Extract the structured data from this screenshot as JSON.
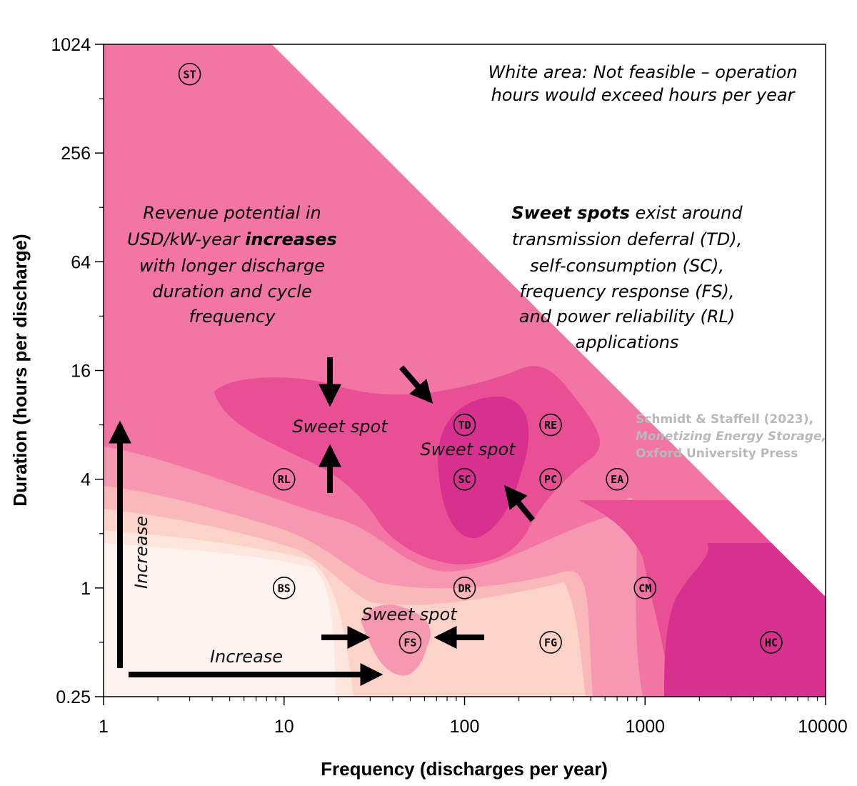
{
  "chart_data": {
    "type": "heatmap",
    "x_scale": "log",
    "y_scale": "log",
    "xlim": [
      1,
      10000
    ],
    "ylim": [
      0.25,
      1024
    ],
    "xlabel": "Frequency (discharges per year)",
    "ylabel": "Duration (hours per discharge)",
    "x_ticks": [
      1,
      10,
      100,
      1000,
      10000
    ],
    "x_tick_labels": [
      "1",
      "10",
      "100",
      "1000",
      "10000"
    ],
    "y_ticks": [
      0.25,
      1,
      4,
      16,
      64,
      256,
      1024
    ],
    "y_tick_labels": [
      "0.25",
      "1",
      "4",
      "16",
      "64",
      "256",
      "1024"
    ],
    "feasibility_limit_hours_per_year": 8760,
    "colors": {
      "white_area": "#ffffff",
      "level_1": "#fff3ef",
      "level_2": "#fde6de",
      "level_3": "#fcd3c9",
      "level_4": "#f9b8b9",
      "level_5": "#f698b1",
      "level_6": "#f375a3",
      "level_7": "#e94f95",
      "level_8": "#d8308f"
    },
    "applications": [
      {
        "code": "ST",
        "frequency": 3,
        "duration": 700
      },
      {
        "code": "RL",
        "frequency": 10,
        "duration": 4
      },
      {
        "code": "BS",
        "frequency": 10,
        "duration": 1
      },
      {
        "code": "TD",
        "frequency": 100,
        "duration": 8
      },
      {
        "code": "SC",
        "frequency": 100,
        "duration": 4
      },
      {
        "code": "DR",
        "frequency": 100,
        "duration": 1
      },
      {
        "code": "FS",
        "frequency": 50,
        "duration": 0.5
      },
      {
        "code": "RE",
        "frequency": 300,
        "duration": 8
      },
      {
        "code": "PC",
        "frequency": 300,
        "duration": 4
      },
      {
        "code": "FG",
        "frequency": 300,
        "duration": 0.5
      },
      {
        "code": "EA",
        "frequency": 700,
        "duration": 4
      },
      {
        "code": "CM",
        "frequency": 1000,
        "duration": 1
      },
      {
        "code": "HC",
        "frequency": 5000,
        "duration": 0.5
      }
    ],
    "annotations": {
      "white_area_line1": "White area: Not feasible – operation",
      "white_area_line2": "hours would exceed hours per year",
      "revenue_line1": "Revenue potential in",
      "revenue_line2_a": "USD/kW-year ",
      "revenue_line2_b": "increases",
      "revenue_line3": "with longer discharge",
      "revenue_line4": "duration and cycle",
      "revenue_line5": "frequency",
      "sweet_line1_a": "Sweet spots",
      "sweet_line1_b": " exist around",
      "sweet_line2": "transmission deferral (TD),",
      "sweet_line3": "self-consumption (SC),",
      "sweet_line4": "frequency response (FS),",
      "sweet_line5": "and power reliability (RL)",
      "sweet_line6": "applications",
      "sweet_spot_label": "Sweet spot",
      "increase_label": "Increase"
    },
    "credit": {
      "line1": "Schmidt & Staffell (2023),",
      "line2": "Monetizing Energy Storage,",
      "line3": "Oxford University Press"
    }
  }
}
